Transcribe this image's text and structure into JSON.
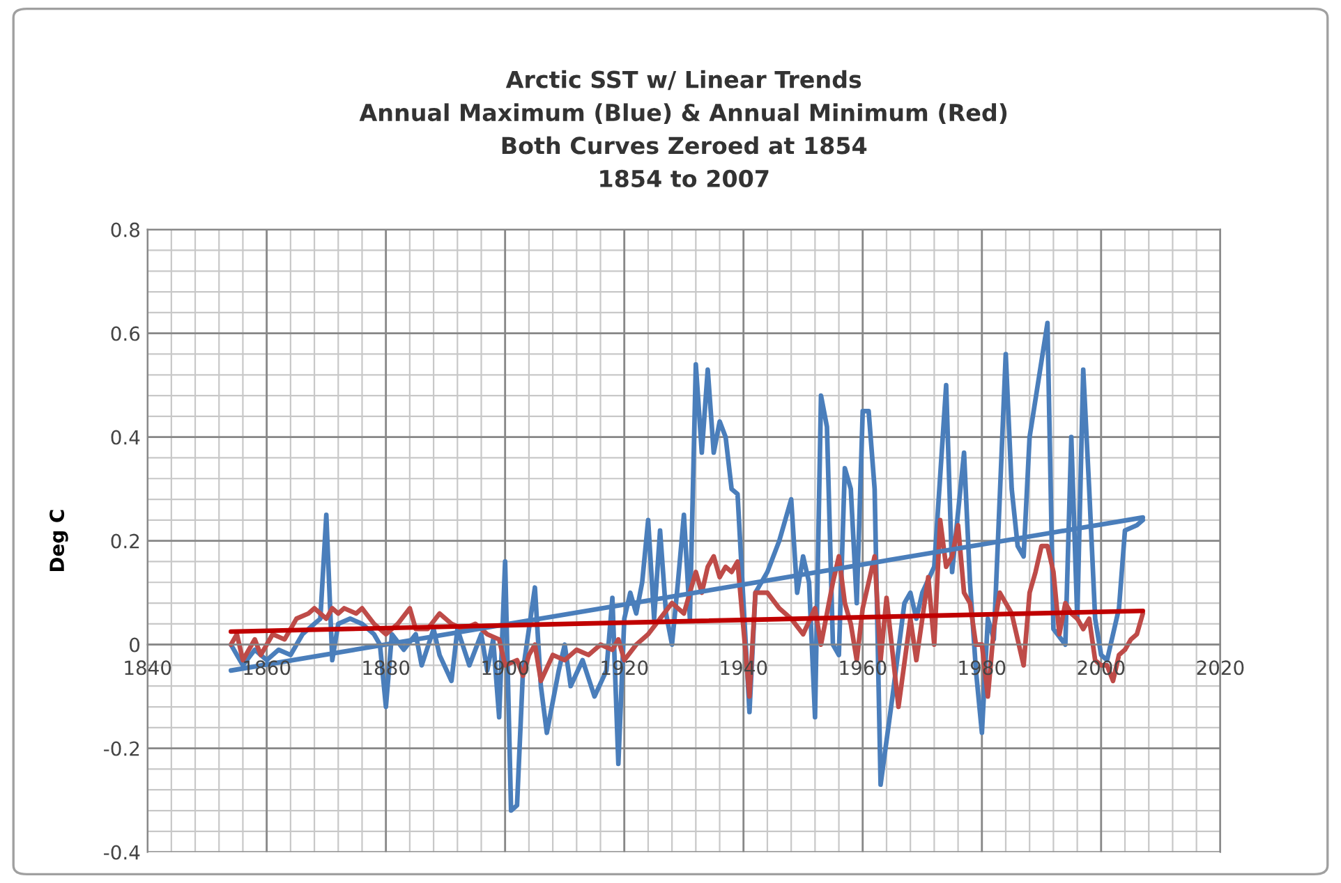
{
  "chart_data": {
    "type": "line",
    "title": "Arctic SST w/ Linear Trends\nAnnual Maximum (Blue) & Annual Minimum (Red)\nBoth Curves Zeroed at 1854\n1854 to 2007",
    "ylabel": "Deg C",
    "xlim": [
      1840,
      2020
    ],
    "xticks": [
      1840,
      1860,
      1880,
      1900,
      1920,
      1940,
      1960,
      1980,
      2000,
      2020
    ],
    "ylim": [
      -0.4,
      0.8
    ],
    "yticks": [
      -0.4,
      -0.2,
      0,
      0.2,
      0.4,
      0.6,
      0.8
    ],
    "grid": true,
    "legend": false,
    "marker": "none",
    "line_style": "solid",
    "series": [
      {
        "color": "#4a7ebb",
        "x": [
          1854,
          1856,
          1858,
          1860,
          1862,
          1864,
          1866,
          1868,
          1869,
          1870,
          1871,
          1872,
          1874,
          1876,
          1878,
          1879,
          1880,
          1881,
          1883,
          1885,
          1886,
          1888,
          1889,
          1891,
          1892,
          1894,
          1896,
          1897,
          1898,
          1899,
          1900,
          1901,
          1902,
          1903,
          1905,
          1906,
          1907,
          1909,
          1910,
          1911,
          1913,
          1915,
          1917,
          1918,
          1919,
          1920,
          1921,
          1922,
          1923,
          1924,
          1925,
          1926,
          1927,
          1928,
          1929,
          1930,
          1931,
          1932,
          1933,
          1934,
          1935,
          1936,
          1937,
          1938,
          1939,
          1941,
          1942,
          1944,
          1946,
          1948,
          1949,
          1950,
          1951,
          1952,
          1953,
          1954,
          1955,
          1956,
          1957,
          1958,
          1959,
          1960,
          1961,
          1962,
          1963,
          1965,
          1967,
          1968,
          1969,
          1970,
          1972,
          1974,
          1975,
          1977,
          1978,
          1979,
          1980,
          1981,
          1982,
          1984,
          1985,
          1986,
          1987,
          1988,
          1991,
          1992,
          1994,
          1995,
          1996,
          1997,
          1998,
          1999,
          2000,
          2001,
          2003,
          2004,
          2006,
          2007
        ],
        "values": [
          0.0,
          -0.04,
          -0.01,
          -0.03,
          -0.01,
          -0.02,
          0.02,
          0.04,
          0.05,
          0.25,
          -0.03,
          0.04,
          0.05,
          0.04,
          0.02,
          0.0,
          -0.12,
          0.02,
          -0.01,
          0.02,
          -0.04,
          0.03,
          -0.02,
          -0.07,
          0.03,
          -0.04,
          0.02,
          -0.05,
          0.01,
          -0.14,
          0.16,
          -0.32,
          -0.31,
          -0.05,
          0.11,
          -0.08,
          -0.17,
          -0.05,
          0.0,
          -0.08,
          -0.03,
          -0.1,
          -0.05,
          0.09,
          -0.23,
          0.05,
          0.1,
          0.06,
          0.12,
          0.24,
          0.05,
          0.22,
          0.06,
          0.0,
          0.12,
          0.25,
          0.05,
          0.54,
          0.37,
          0.53,
          0.37,
          0.43,
          0.4,
          0.3,
          0.29,
          -0.13,
          0.1,
          0.14,
          0.2,
          0.28,
          0.1,
          0.17,
          0.12,
          -0.14,
          0.48,
          0.42,
          0.0,
          -0.02,
          0.34,
          0.3,
          0.08,
          0.45,
          0.45,
          0.3,
          -0.27,
          -0.1,
          0.08,
          0.1,
          0.05,
          0.1,
          0.15,
          0.5,
          0.14,
          0.37,
          0.12,
          -0.05,
          -0.17,
          0.05,
          0.01,
          0.56,
          0.3,
          0.19,
          0.17,
          0.4,
          0.62,
          0.03,
          0.0,
          0.4,
          0.05,
          0.53,
          0.3,
          0.05,
          -0.02,
          -0.03,
          0.07,
          0.22,
          0.23,
          0.24
        ]
      },
      {
        "color": "#be4b48",
        "x": [
          1854,
          1855,
          1856,
          1858,
          1859,
          1861,
          1863,
          1865,
          1867,
          1868,
          1869,
          1870,
          1871,
          1872,
          1873,
          1875,
          1876,
          1878,
          1879,
          1880,
          1882,
          1884,
          1885,
          1887,
          1889,
          1891,
          1893,
          1895,
          1897,
          1899,
          1900,
          1902,
          1903,
          1904,
          1905,
          1906,
          1908,
          1910,
          1912,
          1914,
          1916,
          1918,
          1919,
          1920,
          1922,
          1924,
          1926,
          1928,
          1930,
          1931,
          1932,
          1933,
          1934,
          1935,
          1936,
          1937,
          1938,
          1939,
          1941,
          1942,
          1944,
          1946,
          1948,
          1950,
          1952,
          1953,
          1955,
          1956,
          1957,
          1958,
          1959,
          1960,
          1962,
          1963,
          1964,
          1966,
          1968,
          1969,
          1970,
          1971,
          1972,
          1973,
          1974,
          1975,
          1976,
          1977,
          1978,
          1979,
          1980,
          1981,
          1982,
          1983,
          1985,
          1987,
          1988,
          1989,
          1990,
          1991,
          1992,
          1993,
          1994,
          1995,
          1996,
          1997,
          1998,
          1999,
          2000,
          2001,
          2002,
          2003,
          2004,
          2005,
          2006,
          2007
        ],
        "values": [
          0.0,
          0.02,
          -0.03,
          0.01,
          -0.02,
          0.02,
          0.01,
          0.05,
          0.06,
          0.07,
          0.06,
          0.05,
          0.07,
          0.06,
          0.07,
          0.06,
          0.07,
          0.04,
          0.03,
          0.02,
          0.04,
          0.07,
          0.03,
          0.03,
          0.06,
          0.04,
          0.03,
          0.04,
          0.02,
          0.01,
          -0.04,
          -0.03,
          -0.06,
          -0.02,
          0.0,
          -0.07,
          -0.02,
          -0.03,
          -0.01,
          -0.02,
          0.0,
          -0.01,
          0.01,
          -0.03,
          0.0,
          0.02,
          0.05,
          0.08,
          0.06,
          0.1,
          0.14,
          0.1,
          0.15,
          0.17,
          0.13,
          0.15,
          0.14,
          0.16,
          -0.1,
          0.1,
          0.1,
          0.07,
          0.05,
          0.02,
          0.07,
          0.0,
          0.12,
          0.17,
          0.08,
          0.04,
          -0.03,
          0.07,
          0.17,
          -0.03,
          0.09,
          -0.12,
          0.05,
          -0.03,
          0.05,
          0.13,
          0.0,
          0.24,
          0.15,
          0.17,
          0.23,
          0.1,
          0.08,
          0.0,
          0.0,
          -0.1,
          0.03,
          0.1,
          0.06,
          -0.04,
          0.1,
          0.14,
          0.19,
          0.19,
          0.14,
          0.02,
          0.08,
          0.06,
          0.05,
          0.03,
          0.05,
          -0.03,
          -0.04,
          -0.04,
          -0.07,
          -0.02,
          -0.01,
          0.01,
          0.02,
          0.06
        ]
      },
      {
        "color": "#4a7ebb",
        "x": [
          1854,
          2007
        ],
        "values": [
          -0.05,
          0.245
        ]
      },
      {
        "color": "#c00000",
        "x": [
          1854,
          2007
        ],
        "values": [
          0.025,
          0.065
        ]
      }
    ]
  }
}
